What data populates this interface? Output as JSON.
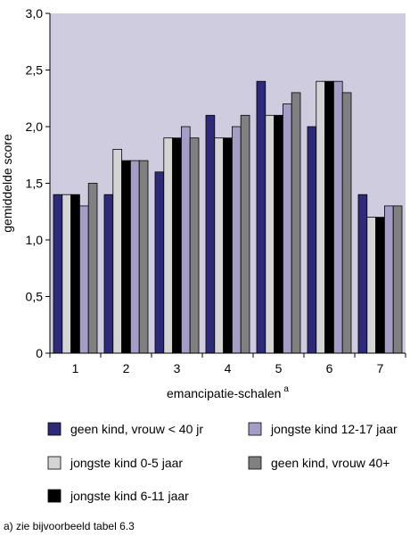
{
  "chart_data": {
    "type": "bar",
    "categories": [
      "1",
      "2",
      "3",
      "4",
      "5",
      "6",
      "7"
    ],
    "series": [
      {
        "name": "geen kind, vrouw < 40 jr",
        "color": "#2e2a7a",
        "values": [
          1.4,
          1.4,
          1.6,
          2.1,
          2.4,
          2.0,
          1.4
        ]
      },
      {
        "name": "jongste kind 0-5 jaar",
        "color": "#d4d4d4",
        "values": [
          1.4,
          1.8,
          1.9,
          1.9,
          2.1,
          2.4,
          1.2
        ]
      },
      {
        "name": "jongste kind 6-11 jaar",
        "color": "#000000",
        "values": [
          1.4,
          1.7,
          1.9,
          1.9,
          2.1,
          2.4,
          1.2
        ]
      },
      {
        "name": "jongste kind 12-17 jaar",
        "color": "#a59dc6",
        "values": [
          1.3,
          1.7,
          2.0,
          2.0,
          2.2,
          2.4,
          1.3
        ]
      },
      {
        "name": "geen kind, vrouw 40+",
        "color": "#808080",
        "values": [
          1.5,
          1.7,
          1.9,
          2.1,
          2.3,
          2.3,
          1.3
        ]
      }
    ],
    "xlabel": "emancipatie-schalen",
    "xlabel_superscript": "a",
    "ylabel": "gemiddelde score",
    "ylim": [
      0,
      3.0
    ],
    "yticks": [
      "0",
      "0,5",
      "1,0",
      "1,5",
      "2,0",
      "2,5",
      "3,0"
    ],
    "ytick_values": [
      0,
      0.5,
      1.0,
      1.5,
      2.0,
      2.5,
      3.0
    ],
    "plot_background": "#d0cce0",
    "grid": false,
    "legend_placement": "bottom",
    "legend_order": [
      0,
      3,
      1,
      4,
      2
    ],
    "footnote": "a) zie bijvoorbeeld tabel 6.3"
  }
}
